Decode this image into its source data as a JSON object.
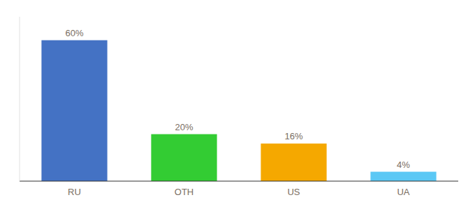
{
  "chart_data": {
    "type": "bar",
    "categories": [
      "RU",
      "OTH",
      "US",
      "UA"
    ],
    "values": [
      60,
      20,
      16,
      4
    ],
    "value_labels": [
      "60%",
      "20%",
      "16%",
      "4%"
    ],
    "colors": [
      "#4472c4",
      "#33cc33",
      "#f5a800",
      "#5bc8f5"
    ],
    "ylim": [
      0,
      70
    ],
    "data_labels": true,
    "tick_labels": "x",
    "grid": false
  }
}
